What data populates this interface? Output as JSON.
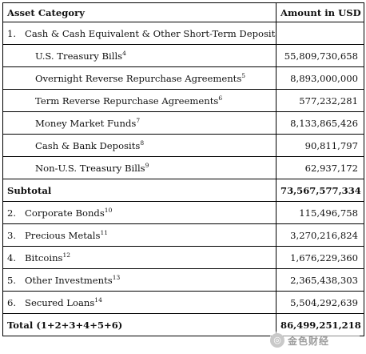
{
  "header": {
    "category": "Asset Category",
    "amount": "Amount in USD"
  },
  "group1": {
    "number": "1.",
    "label": "Cash & Cash Equivalent & Other Short-Term Deposits"
  },
  "sub_items": [
    {
      "label": "U.S. Treasury Bills",
      "note": "4",
      "amount": "55,809,730,658"
    },
    {
      "label": "Overnight Reverse Repurchase Agreements",
      "note": "5",
      "amount": "8,893,000,000"
    },
    {
      "label": "Term Reverse Repurchase Agreements",
      "note": "6",
      "amount": "577,232,281"
    },
    {
      "label": "Money Market Funds",
      "note": "7",
      "amount": "8,133,865,426"
    },
    {
      "label": "Cash & Bank Deposits",
      "note": "8",
      "amount": "90,811,797"
    },
    {
      "label": "Non-U.S. Treasury Bills",
      "note": "9",
      "amount": "62,937,172"
    }
  ],
  "subtotal": {
    "label": "Subtotal",
    "amount": "73,567,577,334"
  },
  "items": [
    {
      "number": "2.",
      "label": "Corporate Bonds",
      "note": "10",
      "amount": "115,496,758"
    },
    {
      "number": "3.",
      "label": "Precious Metals",
      "note": "11",
      "amount": "3,270,216,824"
    },
    {
      "number": "4.",
      "label": "Bitcoins",
      "note": "12",
      "amount": "1,676,229,360"
    },
    {
      "number": "5.",
      "label": "Other Investments",
      "note": "13",
      "amount": "2,365,438,303"
    },
    {
      "number": "6.",
      "label": "Secured Loans",
      "note": "14",
      "amount": "5,504,292,639"
    }
  ],
  "total": {
    "label": "Total (1+2+3+4+5+6)",
    "amount": "86,499,251,218"
  },
  "watermark": {
    "logo": "◎",
    "text": "金色财经"
  }
}
